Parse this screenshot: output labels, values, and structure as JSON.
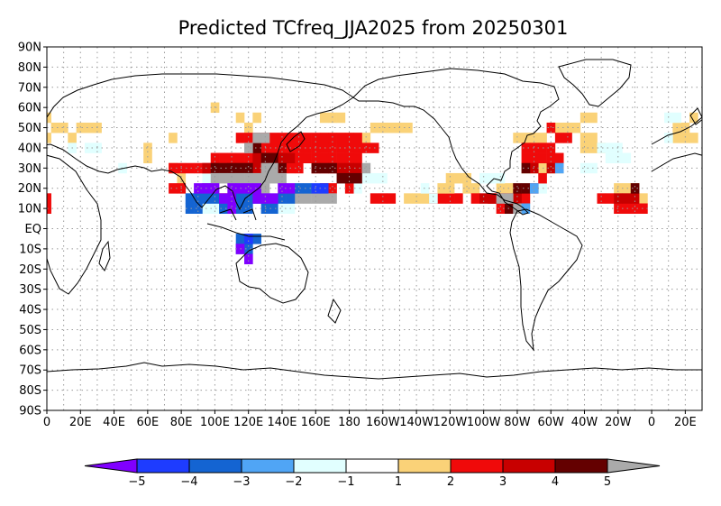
{
  "title": "Predicted TCfreq_JJA2025 from 20250301",
  "lat_labels": [
    "90N",
    "80N",
    "70N",
    "60N",
    "50N",
    "40N",
    "30N",
    "20N",
    "10N",
    "EQ",
    "10S",
    "20S",
    "30S",
    "40S",
    "50S",
    "60S",
    "70S",
    "80S",
    "90S"
  ],
  "lon_labels": [
    "0",
    "20E",
    "40E",
    "60E",
    "80E",
    "100E",
    "120E",
    "140E",
    "160E",
    "180",
    "160W",
    "140W",
    "120W",
    "100W",
    "80W",
    "60W",
    "40W",
    "20W",
    "0",
    "20E"
  ],
  "colorbar": {
    "labels": [
      "−5",
      "−4",
      "−3",
      "−2",
      "−1",
      "1",
      "2",
      "3",
      "4",
      "5"
    ],
    "colors": [
      "#8000ff",
      "#1e3cff",
      "#1464d2",
      "#50a5f5",
      "#e1ffff",
      "#ffffff",
      "#fad278",
      "#f00a0a",
      "#c80000",
      "#640000",
      "#aaaaaa"
    ]
  },
  "map_data": {
    "type": "gridded_anomaly_map",
    "lon_range": [
      0,
      390
    ],
    "lat_range": [
      -90,
      90
    ],
    "cell_deg": 5,
    "grid": "dotted",
    "coastlines": true,
    "levels": [
      -5,
      -4,
      -3,
      -2,
      -1,
      1,
      2,
      3,
      4,
      5
    ],
    "category_codes": {
      "a": "<-5",
      "b": "-5..-4",
      "c": "-4..-3",
      "d": "-3..-2",
      "e": "-2..-1",
      "f": "1..2",
      "g": "2..3",
      "h": "3..4",
      "i": "4..5",
      "j": ">5"
    },
    "cells": [
      [
        "f",
        0,
        55
      ],
      [
        "f",
        0,
        45
      ],
      [
        "f",
        5,
        50
      ],
      [
        "f",
        10,
        50
      ],
      [
        "f",
        15,
        45
      ],
      [
        "f",
        20,
        50
      ],
      [
        "f",
        25,
        50
      ],
      [
        "f",
        30,
        50
      ],
      [
        "e",
        15,
        40
      ],
      [
        "f",
        75,
        45
      ],
      [
        "f",
        75,
        30
      ],
      [
        "f",
        80,
        25
      ],
      [
        "f",
        60,
        40
      ],
      [
        "f",
        60,
        35
      ],
      [
        "f",
        140,
        40
      ],
      [
        "f",
        145,
        40
      ],
      [
        "f",
        150,
        40
      ],
      [
        "f",
        155,
        40
      ],
      [
        "f",
        160,
        40
      ],
      [
        "f",
        165,
        45
      ],
      [
        "f",
        170,
        45
      ],
      [
        "f",
        175,
        45
      ],
      [
        "f",
        180,
        45
      ],
      [
        "f",
        185,
        45
      ],
      [
        "f",
        190,
        45
      ],
      [
        "f",
        195,
        50
      ],
      [
        "f",
        200,
        50
      ],
      [
        "f",
        205,
        50
      ],
      [
        "f",
        210,
        50
      ],
      [
        "f",
        215,
        50
      ],
      [
        "f",
        100,
        60
      ],
      [
        "f",
        115,
        55
      ],
      [
        "f",
        120,
        50
      ],
      [
        "f",
        125,
        55
      ],
      [
        "f",
        165,
        55
      ],
      [
        "f",
        170,
        55
      ],
      [
        "f",
        175,
        55
      ],
      [
        "g",
        0,
        15
      ],
      [
        "g",
        195,
        15
      ],
      [
        "g",
        200,
        15
      ],
      [
        "g",
        205,
        15
      ],
      [
        "g",
        230,
        15
      ],
      [
        "g",
        235,
        15
      ],
      [
        "g",
        240,
        15
      ],
      [
        "g",
        245,
        15
      ],
      [
        "f",
        215,
        15
      ],
      [
        "f",
        220,
        15
      ],
      [
        "f",
        225,
        15
      ],
      [
        "f",
        240,
        25
      ],
      [
        "f",
        245,
        25
      ],
      [
        "f",
        250,
        20
      ],
      [
        "f",
        255,
        20
      ],
      [
        "f",
        250,
        25
      ],
      [
        "f",
        235,
        20
      ],
      [
        "f",
        240,
        20
      ],
      [
        "f",
        270,
        15
      ],
      [
        "f",
        270,
        20
      ],
      [
        "f",
        275,
        20
      ],
      [
        "f",
        285,
        30
      ],
      [
        "f",
        290,
        30
      ],
      [
        "f",
        295,
        30
      ],
      [
        "f",
        300,
        30
      ],
      [
        "f",
        305,
        30
      ],
      [
        "f",
        280,
        45
      ],
      [
        "f",
        285,
        45
      ],
      [
        "f",
        290,
        45
      ],
      [
        "f",
        295,
        45
      ],
      [
        "f",
        300,
        50
      ],
      [
        "f",
        305,
        50
      ],
      [
        "f",
        310,
        50
      ],
      [
        "f",
        315,
        50
      ],
      [
        "f",
        320,
        55
      ],
      [
        "f",
        325,
        55
      ],
      [
        "f",
        320,
        45
      ],
      [
        "f",
        325,
        45
      ],
      [
        "f",
        330,
        40
      ],
      [
        "f",
        320,
        40
      ],
      [
        "f",
        325,
        40
      ],
      [
        "f",
        340,
        20
      ],
      [
        "f",
        345,
        20
      ],
      [
        "f",
        350,
        20
      ],
      [
        "f",
        345,
        15
      ],
      [
        "f",
        350,
        15
      ],
      [
        "f",
        355,
        15
      ],
      [
        "f",
        375,
        50
      ],
      [
        "f",
        380,
        50
      ],
      [
        "f",
        375,
        45
      ],
      [
        "f",
        380,
        45
      ],
      [
        "f",
        385,
        55
      ],
      [
        "f",
        385,
        45
      ],
      [
        "e",
        330,
        40
      ],
      [
        "e",
        335,
        40
      ],
      [
        "e",
        340,
        40
      ],
      [
        "e",
        335,
        35
      ],
      [
        "e",
        340,
        35
      ],
      [
        "e",
        345,
        35
      ],
      [
        "e",
        320,
        30
      ],
      [
        "e",
        325,
        30
      ],
      [
        "e",
        185,
        20
      ],
      [
        "e",
        190,
        25
      ],
      [
        "e",
        195,
        25
      ],
      [
        "e",
        200,
        25
      ],
      [
        "e",
        130,
        15
      ],
      [
        "e",
        135,
        15
      ],
      [
        "e",
        140,
        10
      ],
      [
        "e",
        145,
        10
      ],
      [
        "e",
        95,
        10
      ],
      [
        "e",
        100,
        10
      ],
      [
        "e",
        105,
        10
      ],
      [
        "e",
        230,
        15
      ],
      [
        "e",
        225,
        20
      ],
      [
        "e",
        260,
        25
      ],
      [
        "e",
        265,
        25
      ],
      [
        "e",
        270,
        25
      ],
      [
        "e",
        285,
        20
      ],
      [
        "e",
        290,
        20
      ],
      [
        "e",
        295,
        20
      ],
      [
        "e",
        370,
        55
      ],
      [
        "e",
        375,
        55
      ],
      [
        "e",
        370,
        45
      ],
      [
        "e",
        25,
        40
      ],
      [
        "e",
        30,
        40
      ],
      [
        "e",
        95,
        25
      ],
      [
        "e",
        100,
        25
      ],
      [
        "e",
        45,
        30
      ],
      [
        "g",
        100,
        35
      ],
      [
        "g",
        105,
        35
      ],
      [
        "g",
        110,
        35
      ],
      [
        "g",
        115,
        35
      ],
      [
        "g",
        120,
        35
      ],
      [
        "g",
        125,
        35
      ],
      [
        "g",
        130,
        35
      ],
      [
        "g",
        135,
        35
      ],
      [
        "g",
        140,
        35
      ],
      [
        "g",
        125,
        40
      ],
      [
        "g",
        130,
        40
      ],
      [
        "g",
        135,
        40
      ],
      [
        "g",
        140,
        40
      ],
      [
        "g",
        145,
        40
      ],
      [
        "g",
        150,
        40
      ],
      [
        "g",
        155,
        40
      ],
      [
        "g",
        160,
        40
      ],
      [
        "g",
        165,
        40
      ],
      [
        "g",
        170,
        40
      ],
      [
        "g",
        175,
        40
      ],
      [
        "g",
        180,
        40
      ],
      [
        "g",
        115,
        45
      ],
      [
        "g",
        120,
        45
      ],
      [
        "g",
        125,
        45
      ],
      [
        "g",
        130,
        45
      ],
      [
        "g",
        135,
        45
      ],
      [
        "g",
        140,
        45
      ],
      [
        "g",
        145,
        45
      ],
      [
        "g",
        150,
        45
      ],
      [
        "g",
        155,
        45
      ],
      [
        "g",
        160,
        45
      ],
      [
        "g",
        165,
        45
      ],
      [
        "g",
        170,
        45
      ],
      [
        "g",
        175,
        45
      ],
      [
        "g",
        180,
        45
      ],
      [
        "g",
        185,
        45
      ],
      [
        "g",
        150,
        35
      ],
      [
        "g",
        155,
        35
      ],
      [
        "g",
        160,
        35
      ],
      [
        "g",
        165,
        35
      ],
      [
        "g",
        170,
        35
      ],
      [
        "g",
        175,
        35
      ],
      [
        "g",
        180,
        35
      ],
      [
        "g",
        185,
        35
      ],
      [
        "g",
        145,
        30
      ],
      [
        "g",
        150,
        30
      ],
      [
        "g",
        160,
        30
      ],
      [
        "g",
        165,
        30
      ],
      [
        "g",
        170,
        30
      ],
      [
        "g",
        185,
        40
      ],
      [
        "g",
        190,
        40
      ],
      [
        "g",
        195,
        40
      ],
      [
        "g",
        75,
        30
      ],
      [
        "g",
        80,
        30
      ],
      [
        "g",
        85,
        30
      ],
      [
        "g",
        90,
        30
      ],
      [
        "g",
        95,
        30
      ],
      [
        "g",
        75,
        20
      ],
      [
        "g",
        80,
        20
      ],
      [
        "g",
        95,
        20
      ],
      [
        "g",
        105,
        15
      ],
      [
        "g",
        165,
        20
      ],
      [
        "g",
        170,
        20
      ],
      [
        "g",
        180,
        20
      ],
      [
        "g",
        285,
        35
      ],
      [
        "g",
        290,
        35
      ],
      [
        "g",
        295,
        35
      ],
      [
        "g",
        300,
        35
      ],
      [
        "g",
        305,
        35
      ],
      [
        "g",
        285,
        40
      ],
      [
        "g",
        290,
        40
      ],
      [
        "g",
        295,
        40
      ],
      [
        "g",
        300,
        40
      ],
      [
        "g",
        300,
        50
      ],
      [
        "g",
        305,
        45
      ],
      [
        "g",
        310,
        45
      ],
      [
        "g",
        330,
        15
      ],
      [
        "g",
        335,
        15
      ],
      [
        "g",
        340,
        10
      ],
      [
        "g",
        345,
        10
      ],
      [
        "g",
        350,
        10
      ],
      [
        "g",
        355,
        10
      ],
      [
        "g",
        275,
        15
      ],
      [
        "g",
        280,
        15
      ],
      [
        "g",
        285,
        15
      ],
      [
        "g",
        290,
        20
      ],
      [
        "g",
        295,
        25
      ],
      [
        "g",
        255,
        15
      ],
      [
        "g",
        265,
        15
      ],
      [
        "g",
        270,
        10
      ],
      [
        "g",
        275,
        10
      ],
      [
        "g",
        350,
        10
      ],
      [
        "g",
        0,
        10
      ],
      [
        "h",
        95,
        30
      ],
      [
        "h",
        100,
        30
      ],
      [
        "h",
        110,
        30
      ],
      [
        "h",
        115,
        30
      ],
      [
        "h",
        120,
        30
      ],
      [
        "h",
        125,
        30
      ],
      [
        "h",
        125,
        35
      ],
      [
        "h",
        130,
        35
      ],
      [
        "h",
        140,
        35
      ],
      [
        "h",
        145,
        35
      ],
      [
        "h",
        175,
        30
      ],
      [
        "h",
        180,
        30
      ],
      [
        "h",
        185,
        30
      ],
      [
        "h",
        260,
        15
      ],
      [
        "h",
        265,
        15
      ],
      [
        "h",
        270,
        15
      ],
      [
        "h",
        280,
        15
      ],
      [
        "h",
        340,
        15
      ],
      [
        "h",
        345,
        15
      ],
      [
        "h",
        350,
        15
      ],
      [
        "h",
        290,
        30
      ],
      [
        "h",
        300,
        30
      ],
      [
        "i",
        100,
        30
      ],
      [
        "i",
        105,
        30
      ],
      [
        "i",
        110,
        30
      ],
      [
        "i",
        115,
        30
      ],
      [
        "i",
        120,
        30
      ],
      [
        "i",
        125,
        40
      ],
      [
        "i",
        130,
        35
      ],
      [
        "i",
        135,
        35
      ],
      [
        "i",
        140,
        30
      ],
      [
        "i",
        160,
        30
      ],
      [
        "i",
        165,
        30
      ],
      [
        "i",
        170,
        30
      ],
      [
        "i",
        175,
        25
      ],
      [
        "i",
        180,
        25
      ],
      [
        "i",
        185,
        25
      ],
      [
        "i",
        280,
        20
      ],
      [
        "i",
        285,
        20
      ],
      [
        "i",
        350,
        20
      ],
      [
        "i",
        275,
        10
      ],
      [
        "i",
        285,
        30
      ],
      [
        "j",
        95,
        20
      ],
      [
        "j",
        100,
        25
      ],
      [
        "j",
        105,
        25
      ],
      [
        "j",
        110,
        25
      ],
      [
        "j",
        115,
        25
      ],
      [
        "j",
        120,
        25
      ],
      [
        "j",
        125,
        25
      ],
      [
        "j",
        130,
        25
      ],
      [
        "j",
        135,
        25
      ],
      [
        "j",
        140,
        25
      ],
      [
        "j",
        110,
        20
      ],
      [
        "j",
        115,
        20
      ],
      [
        "j",
        125,
        20
      ],
      [
        "j",
        130,
        20
      ],
      [
        "j",
        140,
        20
      ],
      [
        "j",
        120,
        40
      ],
      [
        "j",
        125,
        45
      ],
      [
        "j",
        130,
        45
      ],
      [
        "j",
        150,
        15
      ],
      [
        "j",
        155,
        15
      ],
      [
        "j",
        160,
        15
      ],
      [
        "j",
        165,
        15
      ],
      [
        "j",
        170,
        15
      ],
      [
        "j",
        190,
        30
      ],
      [
        "j",
        270,
        15
      ],
      [
        "j",
        275,
        15
      ],
      [
        "j",
        280,
        10
      ],
      [
        "j",
        130,
        30
      ],
      [
        "j",
        135,
        30
      ],
      [
        "d",
        290,
        20
      ],
      [
        "d",
        305,
        30
      ],
      [
        "d",
        285,
        10
      ],
      [
        "c",
        115,
        15
      ],
      [
        "c",
        120,
        15
      ],
      [
        "c",
        125,
        15
      ],
      [
        "c",
        85,
        15
      ],
      [
        "c",
        90,
        15
      ],
      [
        "c",
        95,
        15
      ],
      [
        "c",
        100,
        15
      ],
      [
        "c",
        115,
        10
      ],
      [
        "c",
        120,
        10
      ],
      [
        "c",
        140,
        15
      ],
      [
        "c",
        145,
        15
      ],
      [
        "c",
        150,
        20
      ],
      [
        "c",
        155,
        20
      ],
      [
        "c",
        115,
        -10
      ],
      [
        "c",
        120,
        -10
      ],
      [
        "c",
        115,
        -5
      ],
      [
        "c",
        120,
        -5
      ],
      [
        "c",
        125,
        -5
      ],
      [
        "c",
        85,
        10
      ],
      [
        "c",
        90,
        10
      ],
      [
        "c",
        105,
        10
      ],
      [
        "c",
        110,
        10
      ],
      [
        "c",
        130,
        10
      ],
      [
        "c",
        135,
        10
      ],
      [
        "b",
        160,
        20
      ],
      [
        "b",
        165,
        20
      ],
      [
        "b",
        120,
        -5
      ],
      [
        "a",
        110,
        20
      ],
      [
        "a",
        115,
        20
      ],
      [
        "a",
        120,
        20
      ],
      [
        "a",
        125,
        20
      ],
      [
        "a",
        105,
        15
      ],
      [
        "a",
        110,
        15
      ],
      [
        "a",
        125,
        15
      ],
      [
        "a",
        130,
        15
      ],
      [
        "a",
        135,
        15
      ],
      [
        "a",
        140,
        20
      ],
      [
        "a",
        145,
        20
      ],
      [
        "a",
        110,
        10
      ],
      [
        "a",
        115,
        -10
      ],
      [
        "a",
        120,
        -15
      ],
      [
        "a",
        90,
        20
      ],
      [
        "a",
        95,
        20
      ],
      [
        "a",
        100,
        20
      ]
    ]
  }
}
